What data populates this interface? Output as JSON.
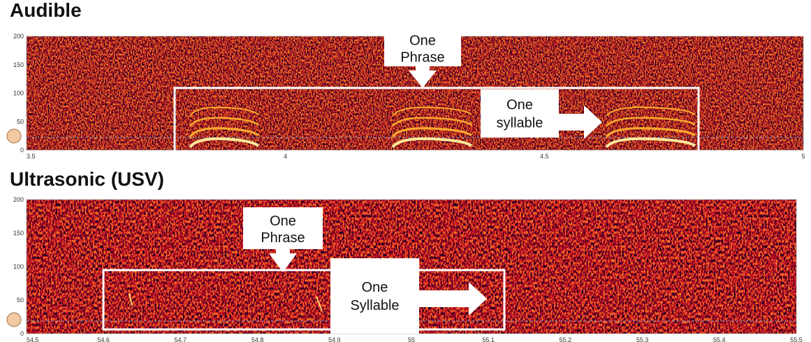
{
  "panels": [
    {
      "title": "Audible",
      "yticks": [
        0,
        50,
        100,
        150,
        200
      ],
      "xticks": [
        3.5,
        4,
        4.5,
        5
      ],
      "phrase_label": "One Phrase",
      "syllable_label": "One syllable"
    },
    {
      "title": "Ultrasonic (USV)",
      "yticks": [
        0,
        50,
        100,
        150,
        200
      ],
      "xticks": [
        54.5,
        54.6,
        54.7,
        54.8,
        54.9,
        55,
        55.1,
        55.2,
        55.3,
        55.4,
        55.5
      ],
      "phrase_label": "One Phrase",
      "syllable_label": "One Syllable"
    }
  ]
}
